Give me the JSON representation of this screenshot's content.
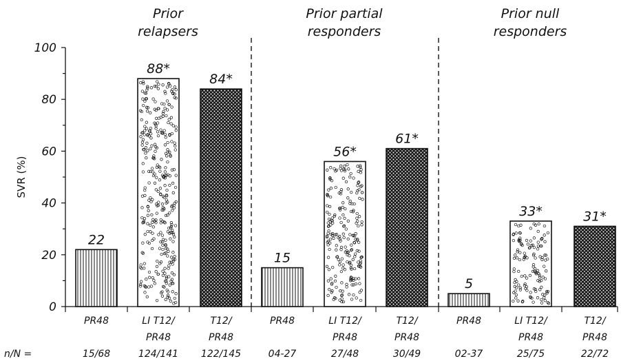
{
  "chart_data": {
    "type": "bar",
    "ylabel": "SVR (%)",
    "ylim": [
      0,
      100
    ],
    "yticks": [
      "0",
      "20",
      "40",
      "60",
      "80",
      "100"
    ],
    "nn_prefix": "n/N =",
    "groups": [
      {
        "title_lines": [
          "Prior",
          "relapsers"
        ]
      },
      {
        "title_lines": [
          "Prior partial",
          "responders"
        ]
      },
      {
        "title_lines": [
          "Prior null",
          "responders"
        ]
      }
    ],
    "bars": [
      {
        "group": 0,
        "category_lines": [
          "PR48"
        ],
        "value": 22,
        "label": "22",
        "nN": "15/68",
        "pattern": "vlines"
      },
      {
        "group": 0,
        "category_lines": [
          "LI T12/",
          "PR48"
        ],
        "value": 88,
        "label": "88*",
        "nN": "124/141",
        "pattern": "circles"
      },
      {
        "group": 0,
        "category_lines": [
          "T12/",
          "PR48"
        ],
        "value": 84,
        "label": "84*",
        "nN": "122/145",
        "pattern": "dense"
      },
      {
        "group": 1,
        "category_lines": [
          "PR48"
        ],
        "value": 15,
        "label": "15",
        "nN": "04-27",
        "pattern": "vlines"
      },
      {
        "group": 1,
        "category_lines": [
          "LI T12/",
          "PR48"
        ],
        "value": 56,
        "label": "56*",
        "nN": "27/48",
        "pattern": "circles"
      },
      {
        "group": 1,
        "category_lines": [
          "T12/",
          "PR48"
        ],
        "value": 61,
        "label": "61*",
        "nN": "30/49",
        "pattern": "dense"
      },
      {
        "group": 2,
        "category_lines": [
          "PR48"
        ],
        "value": 5,
        "label": "5",
        "nN": "02-37",
        "pattern": "vlines"
      },
      {
        "group": 2,
        "category_lines": [
          "LI T12/",
          "PR48"
        ],
        "value": 33,
        "label": "33*",
        "nN": "25/75",
        "pattern": "circles"
      },
      {
        "group": 2,
        "category_lines": [
          "T12/",
          "PR48"
        ],
        "value": 31,
        "label": "31*",
        "nN": "22/72",
        "pattern": "dense"
      }
    ],
    "grid": false,
    "legend": "none"
  }
}
